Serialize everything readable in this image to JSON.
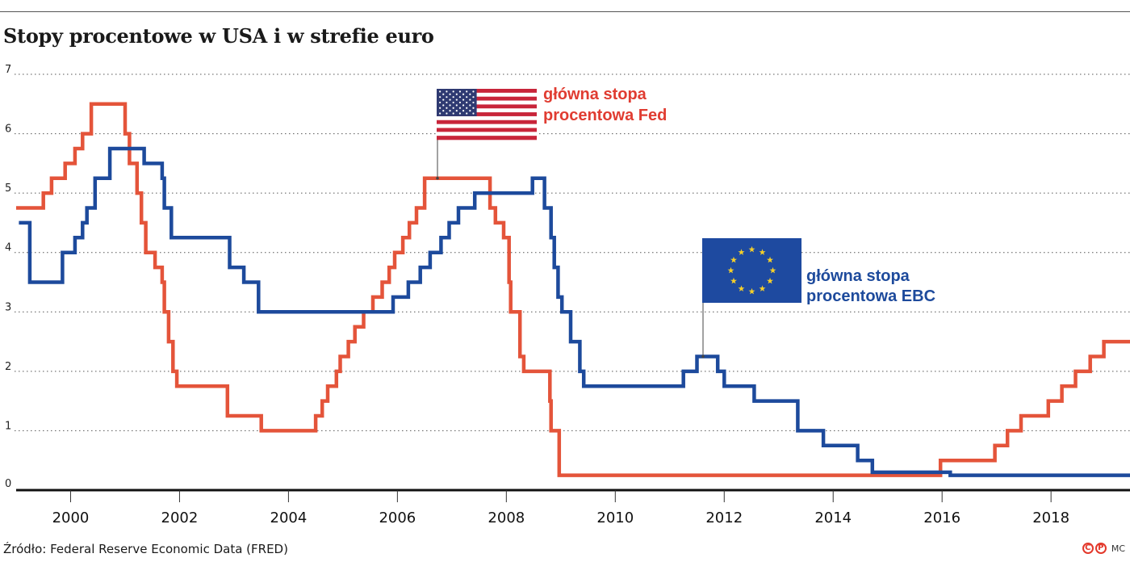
{
  "title": "Stopy procentowe w USA i w strefie euro",
  "source": "Źródło: Federal Reserve Economic Data (FRED)",
  "credits": {
    "cp1": "C",
    "cp2": "P",
    "author": "MC"
  },
  "colors": {
    "fed": "#e4543a",
    "ecb": "#1d4a9c",
    "fed_label": "#e03c31",
    "ecb_label": "#1d4a9c",
    "grid": "#555555"
  },
  "chart_data": {
    "type": "line",
    "title": "Stopy procentowe w USA i w strefie euro",
    "xlabel": "",
    "ylabel": "",
    "xlim": [
      1999.0,
      2019.45
    ],
    "ylim": [
      0,
      7
    ],
    "x_ticks": [
      "2000",
      "2002",
      "2004",
      "2006",
      "2008",
      "2010",
      "2012",
      "2014",
      "2016",
      "2018"
    ],
    "y_ticks": [
      "0",
      "1",
      "2",
      "3",
      "4",
      "5",
      "6",
      "7"
    ],
    "grid": "horizontal dotted",
    "step": true,
    "series": [
      {
        "name": "główna stopa procentowa Fed",
        "points": [
          [
            1999.0,
            4.75
          ],
          [
            1999.5,
            5.0
          ],
          [
            1999.65,
            5.25
          ],
          [
            1999.9,
            5.5
          ],
          [
            2000.08,
            5.75
          ],
          [
            2000.22,
            6.0
          ],
          [
            2000.38,
            6.5
          ],
          [
            2001.0,
            6.0
          ],
          [
            2001.08,
            5.5
          ],
          [
            2001.22,
            5.0
          ],
          [
            2001.3,
            4.5
          ],
          [
            2001.38,
            4.0
          ],
          [
            2001.55,
            3.75
          ],
          [
            2001.68,
            3.5
          ],
          [
            2001.72,
            3.0
          ],
          [
            2001.8,
            2.5
          ],
          [
            2001.88,
            2.0
          ],
          [
            2001.95,
            1.75
          ],
          [
            2002.88,
            1.25
          ],
          [
            2003.5,
            1.0
          ],
          [
            2004.5,
            1.25
          ],
          [
            2004.62,
            1.5
          ],
          [
            2004.72,
            1.75
          ],
          [
            2004.88,
            2.0
          ],
          [
            2004.95,
            2.25
          ],
          [
            2005.1,
            2.5
          ],
          [
            2005.22,
            2.75
          ],
          [
            2005.38,
            3.0
          ],
          [
            2005.55,
            3.25
          ],
          [
            2005.72,
            3.5
          ],
          [
            2005.85,
            3.75
          ],
          [
            2005.95,
            4.0
          ],
          [
            2006.1,
            4.25
          ],
          [
            2006.22,
            4.5
          ],
          [
            2006.35,
            4.75
          ],
          [
            2006.5,
            5.25
          ],
          [
            2007.7,
            4.75
          ],
          [
            2007.8,
            4.5
          ],
          [
            2007.95,
            4.25
          ],
          [
            2008.05,
            3.5
          ],
          [
            2008.08,
            3.0
          ],
          [
            2008.25,
            2.25
          ],
          [
            2008.32,
            2.0
          ],
          [
            2008.8,
            1.5
          ],
          [
            2008.82,
            1.0
          ],
          [
            2008.97,
            0.25
          ],
          [
            2015.97,
            0.5
          ],
          [
            2016.97,
            0.75
          ],
          [
            2017.2,
            1.0
          ],
          [
            2017.45,
            1.25
          ],
          [
            2017.95,
            1.5
          ],
          [
            2018.2,
            1.75
          ],
          [
            2018.45,
            2.0
          ],
          [
            2018.72,
            2.25
          ],
          [
            2018.97,
            2.5
          ],
          [
            2019.45,
            2.5
          ]
        ]
      },
      {
        "name": "główna stopa procentowa EBC",
        "points": [
          [
            1999.05,
            4.5
          ],
          [
            1999.25,
            3.5
          ],
          [
            1999.85,
            4.0
          ],
          [
            2000.08,
            4.25
          ],
          [
            2000.22,
            4.5
          ],
          [
            2000.3,
            4.75
          ],
          [
            2000.45,
            5.25
          ],
          [
            2000.72,
            5.75
          ],
          [
            2001.35,
            5.5
          ],
          [
            2001.68,
            5.25
          ],
          [
            2001.72,
            4.75
          ],
          [
            2001.85,
            4.25
          ],
          [
            2002.92,
            3.75
          ],
          [
            2003.18,
            3.5
          ],
          [
            2003.45,
            3.0
          ],
          [
            2005.92,
            3.25
          ],
          [
            2006.2,
            3.5
          ],
          [
            2006.42,
            3.75
          ],
          [
            2006.6,
            4.0
          ],
          [
            2006.8,
            4.25
          ],
          [
            2006.95,
            4.5
          ],
          [
            2007.12,
            4.75
          ],
          [
            2007.42,
            5.0
          ],
          [
            2008.48,
            5.25
          ],
          [
            2008.7,
            4.75
          ],
          [
            2008.82,
            4.25
          ],
          [
            2008.88,
            3.75
          ],
          [
            2008.95,
            3.25
          ],
          [
            2009.02,
            3.0
          ],
          [
            2009.18,
            2.5
          ],
          [
            2009.35,
            2.0
          ],
          [
            2009.42,
            1.75
          ],
          [
            2011.25,
            2.0
          ],
          [
            2011.5,
            2.25
          ],
          [
            2011.88,
            2.0
          ],
          [
            2012.0,
            1.75
          ],
          [
            2012.55,
            1.5
          ],
          [
            2013.35,
            1.0
          ],
          [
            2013.82,
            0.75
          ],
          [
            2014.45,
            0.5
          ],
          [
            2014.72,
            0.3
          ],
          [
            2016.15,
            0.25
          ],
          [
            2019.45,
            0.25
          ]
        ]
      }
    ],
    "annotations": [
      {
        "label_line1": "główna stopa",
        "label_line2": "procentowa Fed",
        "series": "Fed",
        "flag": "usa",
        "anchor": [
          2006.75,
          5.25
        ]
      },
      {
        "label_line1": "główna stopa",
        "label_line2": "procentowa EBC",
        "series": "EBC",
        "flag": "eu",
        "anchor": [
          2011.7,
          2.25
        ]
      }
    ]
  }
}
